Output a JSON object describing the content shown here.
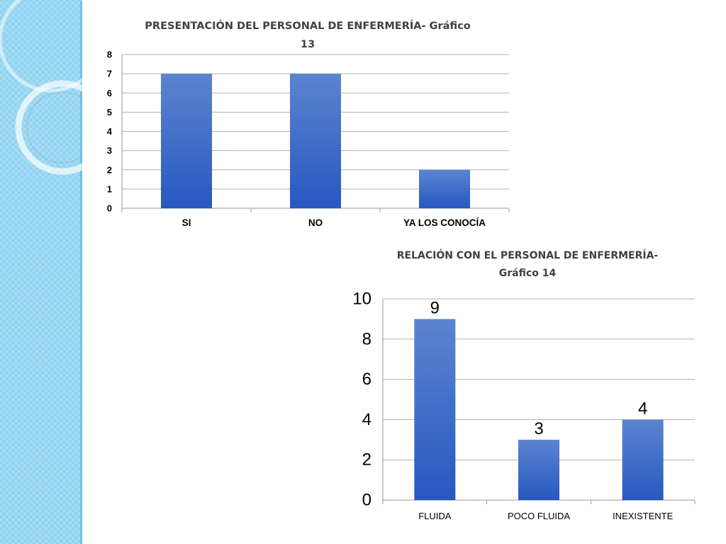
{
  "colors": {
    "bar_top": "#5b84d0",
    "bar_bottom": "#2858c0",
    "side_band": "#8fd3f1"
  },
  "chart_data": [
    {
      "type": "bar",
      "title": [
        "PRESENTACIÓN DEL PERSONAL DE ENFERMERÍA- Gráfico",
        "13"
      ],
      "categories": [
        "SI",
        "NO",
        "YA LOS CONOCÍA"
      ],
      "values": [
        7,
        7,
        2
      ],
      "ylim": [
        0,
        8
      ],
      "yticks": [
        "0",
        "1",
        "2",
        "3",
        "4",
        "5",
        "6",
        "7",
        "8"
      ],
      "grid": true,
      "legend": "none",
      "data_labels": false
    },
    {
      "type": "bar",
      "title": [
        "RELACIÓN CON EL PERSONAL DE ENFERMERÍA-",
        "Gráfico 14"
      ],
      "categories": [
        "FLUIDA",
        "POCO FLUIDA",
        "INEXISTENTE"
      ],
      "values": [
        9,
        3,
        4
      ],
      "ylim": [
        0,
        10
      ],
      "yticks": [
        "0",
        "2",
        "4",
        "6",
        "8",
        "10"
      ],
      "grid": true,
      "legend": "none",
      "data_labels": true
    }
  ]
}
